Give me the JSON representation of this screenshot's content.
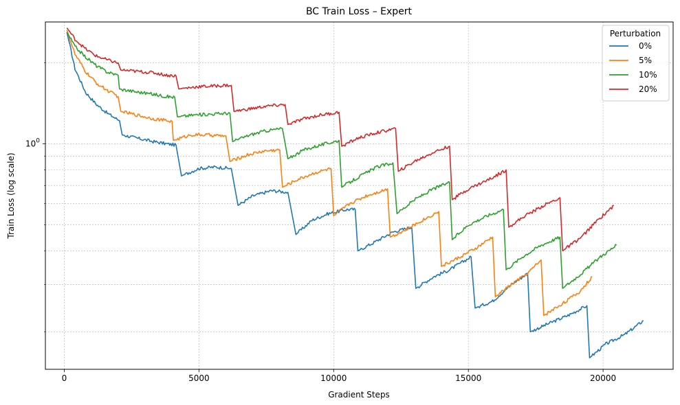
{
  "chart_data": {
    "type": "line",
    "title": "BC Train Loss – Expert",
    "xlabel": "Gradient Steps",
    "ylabel": "Train Loss (log scale)",
    "yscale": "log",
    "xlim": [
      -700,
      22600
    ],
    "ylim": [
      0.145,
      2.84
    ],
    "x_ticks": [
      0,
      5000,
      10000,
      15000,
      20000
    ],
    "x_tick_labels": [
      "0",
      "5000",
      "10000",
      "15000",
      "20000"
    ],
    "y_major_ticks": [
      1.0
    ],
    "y_major_tick_labels": [
      "10^0"
    ],
    "y_minor_ticks": [
      0.2,
      0.3,
      0.4,
      0.5,
      0.6,
      0.7,
      0.8,
      0.9,
      2.0
    ],
    "grid": true,
    "legend": {
      "title": "Perturbation",
      "placement": "top-right"
    },
    "series": [
      {
        "name": "0%",
        "color": "#1f77b4",
        "segments": [
          {
            "x": [
              100,
              400,
              800,
              1200,
              1600,
              2050
            ],
            "y": [
              2.6,
              1.9,
              1.55,
              1.4,
              1.3,
              1.22
            ]
          },
          {
            "x": [
              2150,
              2700,
              3300,
              3800,
              4150
            ],
            "y": [
              1.08,
              1.05,
              1.02,
              1.0,
              0.99
            ]
          },
          {
            "x": [
              4350,
              5000,
              5600,
              6200
            ],
            "y": [
              0.76,
              0.81,
              0.82,
              0.81
            ]
          },
          {
            "x": [
              6450,
              7000,
              7700,
              8300
            ],
            "y": [
              0.59,
              0.64,
              0.67,
              0.66
            ]
          },
          {
            "x": [
              8600,
              9200,
              9800,
              10500,
              10800
            ],
            "y": [
              0.46,
              0.52,
              0.55,
              0.57,
              0.57
            ]
          },
          {
            "x": [
              10900,
              11500,
              12200,
              12900
            ],
            "y": [
              0.4,
              0.43,
              0.47,
              0.49
            ]
          },
          {
            "x": [
              13050,
              13700,
              14300,
              15100
            ],
            "y": [
              0.29,
              0.32,
              0.34,
              0.38
            ]
          },
          {
            "x": [
              15250,
              15900,
              16600,
              17200
            ],
            "y": [
              0.245,
              0.26,
              0.3,
              0.33
            ]
          },
          {
            "x": [
              17300,
              18000,
              18700,
              19400
            ],
            "y": [
              0.2,
              0.215,
              0.23,
              0.25
            ]
          },
          {
            "x": [
              19500,
              20100,
              20800,
              21500
            ],
            "y": [
              0.16,
              0.18,
              0.195,
              0.22
            ]
          }
        ]
      },
      {
        "name": "5%",
        "color": "#ff7f0e",
        "segments": [
          {
            "x": [
              100,
              400,
              800,
              1200,
              1600,
              2000
            ],
            "y": [
              2.65,
              2.15,
              1.85,
              1.68,
              1.58,
              1.5
            ]
          },
          {
            "x": [
              2100,
              2700,
              3300,
              3800,
              4000
            ],
            "y": [
              1.32,
              1.28,
              1.24,
              1.22,
              1.21
            ]
          },
          {
            "x": [
              4050,
              4700,
              5300,
              5900,
              6000
            ],
            "y": [
              1.03,
              1.08,
              1.08,
              1.07,
              1.07
            ]
          },
          {
            "x": [
              6150,
              6800,
              7400,
              8000
            ],
            "y": [
              0.86,
              0.91,
              0.94,
              0.95
            ]
          },
          {
            "x": [
              8100,
              8700,
              9300,
              9900
            ],
            "y": [
              0.69,
              0.74,
              0.78,
              0.81
            ]
          },
          {
            "x": [
              10000,
              10600,
              11200,
              11800,
              12000
            ],
            "y": [
              0.54,
              0.6,
              0.64,
              0.67,
              0.68
            ]
          },
          {
            "x": [
              12100,
              12700,
              13300,
              13900
            ],
            "y": [
              0.45,
              0.48,
              0.52,
              0.56
            ]
          },
          {
            "x": [
              14000,
              14700,
              15300,
              15900
            ],
            "y": [
              0.35,
              0.38,
              0.41,
              0.45
            ]
          },
          {
            "x": [
              16000,
              16600,
              17200,
              17700
            ],
            "y": [
              0.27,
              0.3,
              0.33,
              0.37
            ]
          },
          {
            "x": [
              17800,
              18500,
              19100,
              19600
            ],
            "y": [
              0.23,
              0.255,
              0.28,
              0.32
            ]
          }
        ]
      },
      {
        "name": "10%",
        "color": "#2ca02c",
        "segments": [
          {
            "x": [
              100,
              400,
              800,
              1200,
              1600,
              2000
            ],
            "y": [
              2.6,
              2.3,
              2.1,
              1.95,
              1.85,
              1.8
            ]
          },
          {
            "x": [
              2050,
              2700,
              3300,
              3800,
              4100
            ],
            "y": [
              1.6,
              1.56,
              1.53,
              1.5,
              1.49
            ]
          },
          {
            "x": [
              4200,
              4800,
              5400,
              6000,
              6150
            ],
            "y": [
              1.26,
              1.28,
              1.29,
              1.3,
              1.3
            ]
          },
          {
            "x": [
              6250,
              6900,
              7500,
              8100
            ],
            "y": [
              1.02,
              1.08,
              1.12,
              1.14
            ]
          },
          {
            "x": [
              8300,
              8900,
              9500,
              10200
            ],
            "y": [
              0.88,
              0.95,
              0.99,
              1.03
            ]
          },
          {
            "x": [
              10300,
              10900,
              11600,
              12200
            ],
            "y": [
              0.69,
              0.75,
              0.82,
              0.85
            ]
          },
          {
            "x": [
              12350,
              13000,
              13700,
              14300
            ],
            "y": [
              0.55,
              0.62,
              0.68,
              0.72
            ]
          },
          {
            "x": [
              14400,
              15000,
              15700,
              16300
            ],
            "y": [
              0.44,
              0.5,
              0.54,
              0.57
            ]
          },
          {
            "x": [
              16400,
              17000,
              17700,
              18400
            ],
            "y": [
              0.34,
              0.38,
              0.42,
              0.45
            ]
          },
          {
            "x": [
              18500,
              19200,
              19900,
              20500
            ],
            "y": [
              0.29,
              0.33,
              0.38,
              0.42
            ]
          }
        ]
      },
      {
        "name": "20%",
        "color": "#d62728",
        "segments": [
          {
            "x": [
              100,
              400,
              800,
              1200,
              1600,
              2000
            ],
            "y": [
              2.7,
              2.45,
              2.25,
              2.12,
              2.05,
              2.0
            ]
          },
          {
            "x": [
              2100,
              2700,
              3300,
              3800,
              4150
            ],
            "y": [
              1.88,
              1.86,
              1.84,
              1.8,
              1.79
            ]
          },
          {
            "x": [
              4250,
              4900,
              5500,
              6000,
              6200
            ],
            "y": [
              1.6,
              1.63,
              1.64,
              1.65,
              1.65
            ]
          },
          {
            "x": [
              6300,
              6900,
              7500,
              8200
            ],
            "y": [
              1.32,
              1.35,
              1.38,
              1.4
            ]
          },
          {
            "x": [
              8300,
              8900,
              9500,
              10200
            ],
            "y": [
              1.18,
              1.24,
              1.28,
              1.31
            ]
          },
          {
            "x": [
              10300,
              10900,
              11600,
              12300
            ],
            "y": [
              0.98,
              1.05,
              1.1,
              1.14
            ]
          },
          {
            "x": [
              12400,
              13000,
              13700,
              14300
            ],
            "y": [
              0.79,
              0.86,
              0.93,
              0.98
            ]
          },
          {
            "x": [
              14400,
              15000,
              15800,
              16400
            ],
            "y": [
              0.62,
              0.68,
              0.74,
              0.8
            ]
          },
          {
            "x": [
              16500,
              17100,
              17800,
              18400
            ],
            "y": [
              0.49,
              0.54,
              0.59,
              0.63
            ]
          },
          {
            "x": [
              18500,
              19200,
              19800,
              20400
            ],
            "y": [
              0.4,
              0.45,
              0.52,
              0.59
            ]
          }
        ]
      }
    ]
  }
}
